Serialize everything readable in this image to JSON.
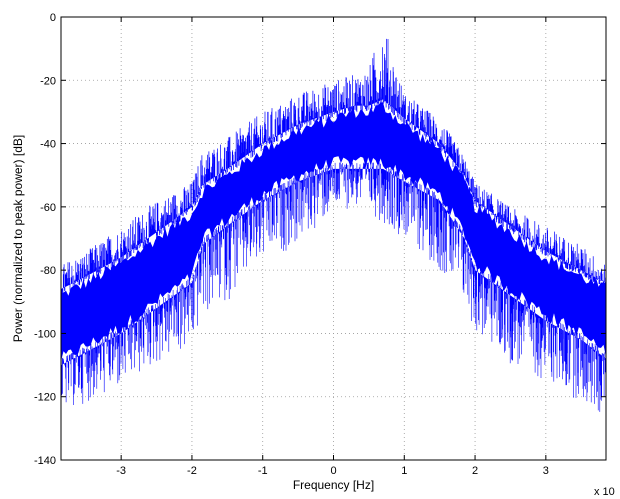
{
  "chart_data": {
    "type": "line",
    "title": "",
    "xlabel": "Frequency [Hz]",
    "ylabel": "Power (normalized to peak power) [dB]",
    "x_exponent_label": "x 10",
    "xlim": [
      -3.85,
      3.85
    ],
    "ylim": [
      -140,
      0
    ],
    "grid": true,
    "x_ticks": [
      -3,
      -2,
      -1,
      0,
      1,
      2,
      3
    ],
    "x_tick_labels": [
      "-3",
      "-2",
      "-1",
      "0",
      "1",
      "2",
      "3"
    ],
    "y_ticks": [
      0,
      -20,
      -40,
      -60,
      -80,
      -100,
      -120,
      -140
    ],
    "y_tick_labels": [
      "0",
      "-20",
      "-40",
      "-60",
      "-80",
      "-100",
      "-120",
      "-140"
    ],
    "series": [
      {
        "color": "#0000ff",
        "envelope": {
          "x": [
            -3.85,
            -3.5,
            -3.0,
            -2.5,
            -2.0,
            -1.85,
            -1.5,
            -1.0,
            -0.5,
            0.0,
            0.3,
            0.5,
            0.7,
            1.0,
            1.5,
            1.85,
            2.0,
            2.5,
            3.0,
            3.5,
            3.85
          ],
          "upper": [
            -78,
            -74,
            -66,
            -58,
            -52,
            -42,
            -38,
            -30,
            -24,
            -20,
            -18,
            -16,
            -1,
            -24,
            -32,
            -44,
            -52,
            -60,
            -66,
            -72,
            -78
          ],
          "core_top": [
            -88,
            -84,
            -78,
            -70,
            -62,
            -55,
            -50,
            -42,
            -36,
            -32,
            -30,
            -30,
            -28,
            -34,
            -42,
            -52,
            -60,
            -68,
            -76,
            -82,
            -86
          ],
          "core_bottom": [
            -108,
            -104,
            -98,
            -90,
            -82,
            -70,
            -64,
            -56,
            -50,
            -46,
            -46,
            -46,
            -46,
            -50,
            -56,
            -68,
            -78,
            -86,
            -94,
            -100,
            -106
          ],
          "lower": [
            -125,
            -122,
            -118,
            -110,
            -105,
            -95,
            -90,
            -78,
            -72,
            -62,
            -60,
            -62,
            -65,
            -70,
            -80,
            -92,
            -100,
            -110,
            -115,
            -122,
            -128
          ]
        }
      }
    ]
  }
}
